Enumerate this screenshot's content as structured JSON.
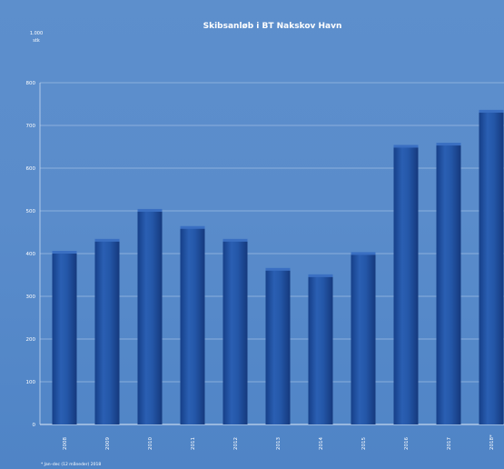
{
  "chart_data": {
    "type": "bar",
    "title": "Skibsanløb i BT Nakskov Havn",
    "unit_label": [
      "1.000",
      "stk"
    ],
    "categories": [
      "2008",
      "2009",
      "2010",
      "2011",
      "2012",
      "2013",
      "2014",
      "2015",
      "2016",
      "2017",
      "2018*"
    ],
    "values": [
      400,
      428,
      498,
      458,
      428,
      360,
      345,
      397,
      648,
      653,
      730
    ],
    "ylim": [
      0,
      800
    ],
    "yticks": [
      "0",
      "100",
      "200",
      "300",
      "400",
      "500",
      "600",
      "700",
      "800"
    ],
    "grid": true,
    "bar_color": "#1f4e9c",
    "footnote": "* Jan–dec (12 måneder) 2018"
  }
}
